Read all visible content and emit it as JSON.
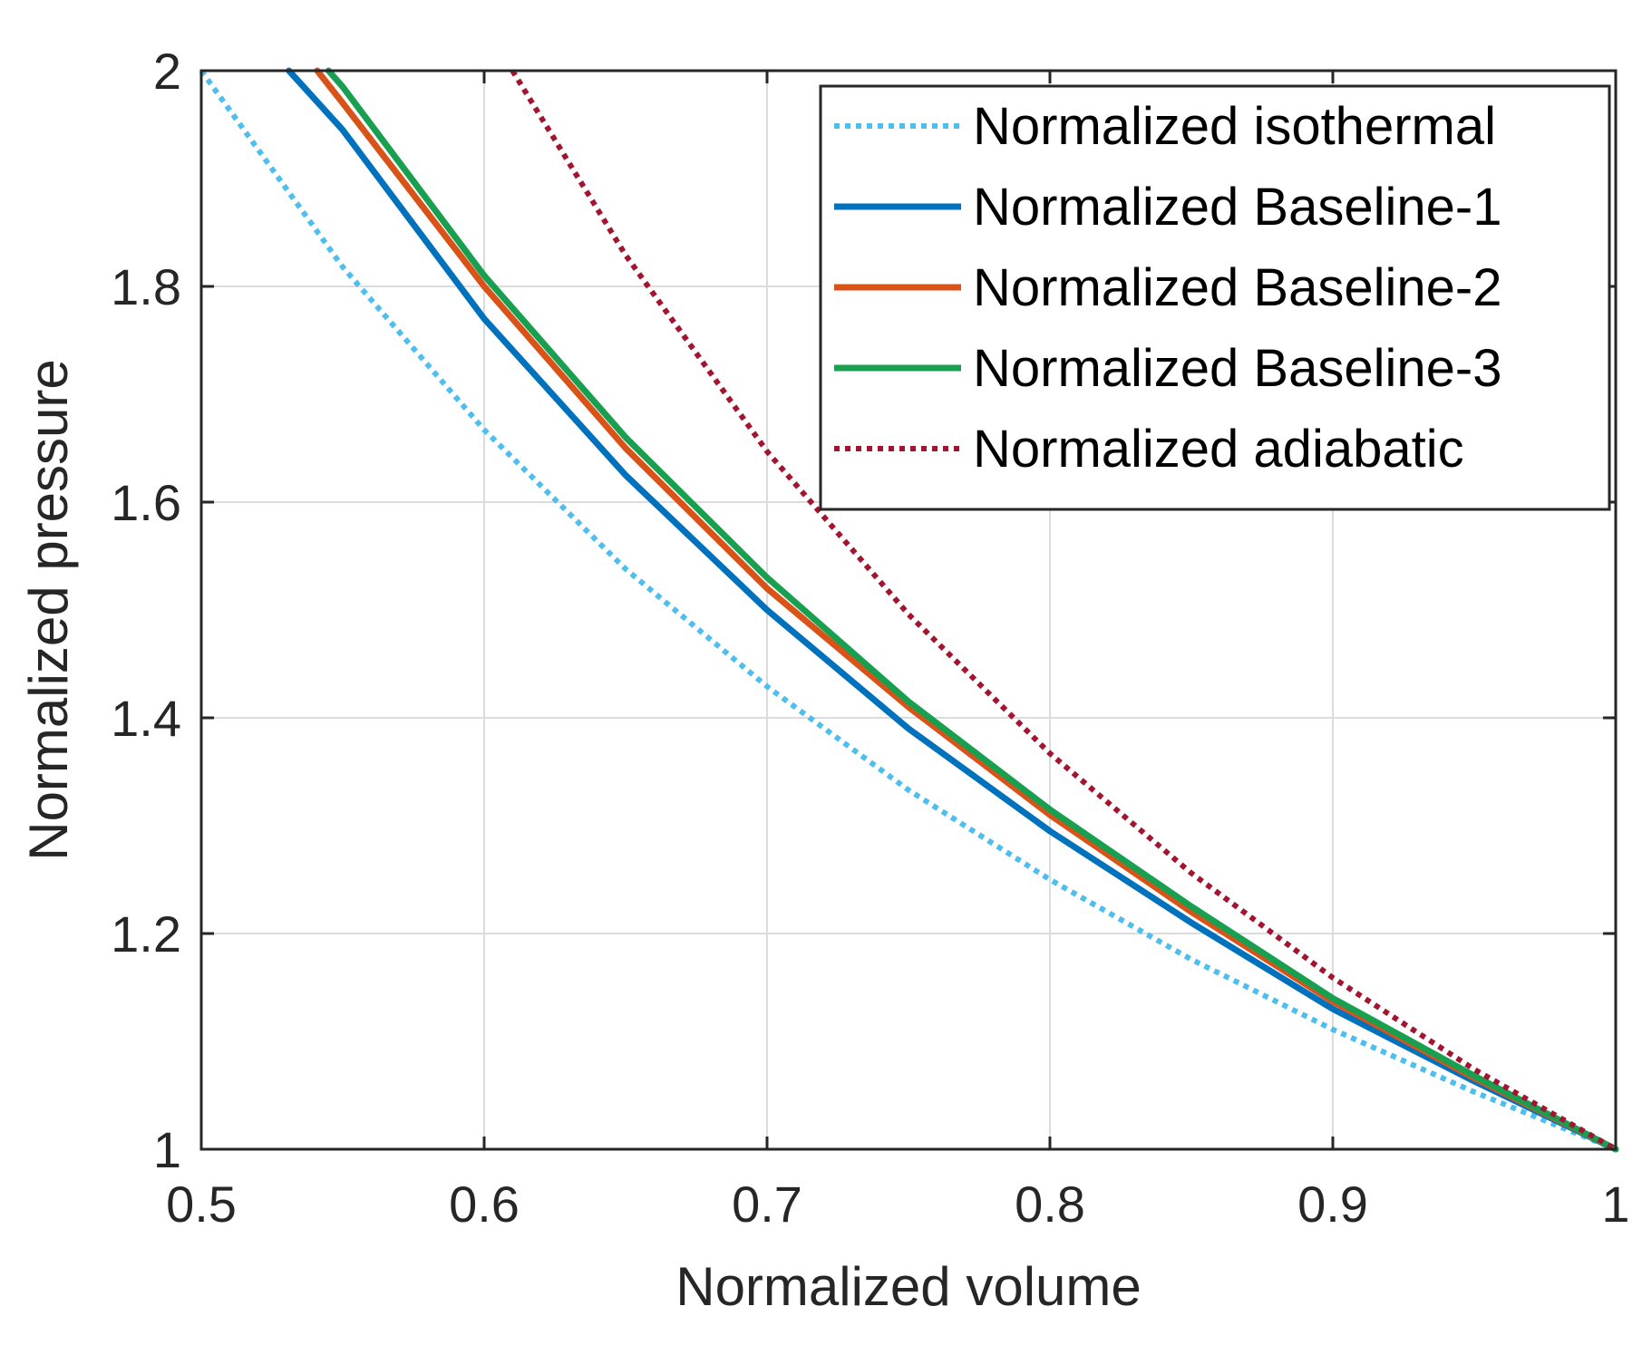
{
  "chart_data": {
    "type": "line",
    "xlabel": "Normalized volume",
    "ylabel": "Normalized pressure",
    "xlim": [
      0.5,
      1
    ],
    "ylim": [
      1,
      2
    ],
    "grid": true,
    "legend_position": "top-right",
    "x_ticks": [
      "0.5",
      "0.6",
      "0.7",
      "0.8",
      "0.9",
      "1"
    ],
    "y_ticks": [
      "1",
      "1.2",
      "1.4",
      "1.6",
      "1.8",
      "2"
    ],
    "series": [
      {
        "name": "Normalized isothermal",
        "color": "#4DBEEE",
        "style": "dotted",
        "x": [
          0.5,
          0.55,
          0.6,
          0.65,
          0.7,
          0.75,
          0.8,
          0.85,
          0.9,
          0.95,
          1.0
        ],
        "y": [
          2.0,
          1.818,
          1.667,
          1.538,
          1.429,
          1.333,
          1.25,
          1.176,
          1.111,
          1.053,
          1.0
        ]
      },
      {
        "name": "Normalized Baseline-1",
        "color": "#0072BD",
        "style": "solid",
        "x": [
          0.531,
          0.55,
          0.6,
          0.65,
          0.7,
          0.75,
          0.8,
          0.85,
          0.9,
          0.95,
          1.0
        ],
        "y": [
          2.0,
          1.945,
          1.77,
          1.625,
          1.5,
          1.39,
          1.295,
          1.21,
          1.13,
          1.063,
          1.0
        ]
      },
      {
        "name": "Normalized Baseline-2",
        "color": "#D95319",
        "style": "solid",
        "x": [
          0.541,
          0.55,
          0.6,
          0.65,
          0.7,
          0.75,
          0.8,
          0.85,
          0.9,
          0.95,
          1.0
        ],
        "y": [
          2.0,
          1.97,
          1.8,
          1.65,
          1.52,
          1.41,
          1.31,
          1.22,
          1.137,
          1.066,
          1.0
        ]
      },
      {
        "name": "Normalized Baseline-3",
        "color": "#18A050",
        "style": "solid",
        "x": [
          0.545,
          0.55,
          0.6,
          0.65,
          0.7,
          0.75,
          0.8,
          0.85,
          0.9,
          0.95,
          1.0
        ],
        "y": [
          2.0,
          1.985,
          1.81,
          1.66,
          1.53,
          1.415,
          1.315,
          1.225,
          1.14,
          1.068,
          1.0
        ]
      },
      {
        "name": "Normalized adiabatic",
        "color": "#A2142F",
        "style": "dotted",
        "x": [
          0.61,
          0.65,
          0.7,
          0.75,
          0.8,
          0.85,
          0.9,
          0.95,
          1.0
        ],
        "y": [
          2.0,
          1.829,
          1.647,
          1.496,
          1.367,
          1.256,
          1.159,
          1.074,
          1.0
        ]
      }
    ]
  }
}
